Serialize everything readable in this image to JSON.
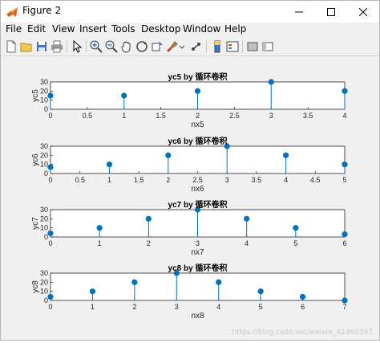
{
  "window": {
    "title": "Figure 2"
  },
  "menu": [
    "File",
    "Edit",
    "View",
    "Insert",
    "Tools",
    "Desktop",
    "Window",
    "Help"
  ],
  "watermark": "https://blog.csdn.net/weixin_42460397",
  "colors": {
    "stem": "#0072bd",
    "axes_bg": "#ffffff",
    "figure_bg": "#f0f0f0"
  },
  "chart_data": [
    {
      "type": "stem",
      "title": "yc5 by 循环卷积",
      "xlabel": "nx5",
      "ylabel": "yc5",
      "x": [
        0,
        1,
        2,
        3,
        4
      ],
      "y": [
        15,
        15,
        20,
        30,
        20
      ],
      "xlim": [
        0,
        4
      ],
      "ylim": [
        0,
        30
      ],
      "xticks": [
        "0",
        "0.5",
        "1",
        "1.5",
        "2",
        "2.5",
        "3",
        "3.5",
        "4"
      ],
      "yticks": [
        "0",
        "10",
        "20",
        "30"
      ]
    },
    {
      "type": "stem",
      "title": "yc6 by 循环卷积",
      "xlabel": "nx6",
      "ylabel": "yc6",
      "x": [
        0,
        1,
        2,
        3,
        4,
        5
      ],
      "y": [
        7,
        10,
        20,
        30,
        20,
        10
      ],
      "xlim": [
        0,
        5
      ],
      "ylim": [
        0,
        30
      ],
      "xticks": [
        "0",
        "0.5",
        "1",
        "1.5",
        "2",
        "2.5",
        "3",
        "3.5",
        "4",
        "4.5",
        "5"
      ],
      "yticks": [
        "0",
        "10",
        "20",
        "30"
      ]
    },
    {
      "type": "stem",
      "title": "yc7 by 循环卷积",
      "xlabel": "nx7",
      "ylabel": "yc7",
      "x": [
        0,
        1,
        2,
        3,
        4,
        5,
        6
      ],
      "y": [
        4,
        10,
        20,
        30,
        20,
        10,
        3
      ],
      "xlim": [
        0,
        6
      ],
      "ylim": [
        0,
        30
      ],
      "xticks": [
        "0",
        "1",
        "2",
        "3",
        "4",
        "5",
        "6"
      ],
      "yticks": [
        "0",
        "10",
        "20",
        "30"
      ]
    },
    {
      "type": "stem",
      "title": "yc8 by 循环卷积",
      "xlabel": "nx8",
      "ylabel": "yc8",
      "x": [
        0,
        1,
        2,
        3,
        4,
        5,
        6,
        7
      ],
      "y": [
        4,
        10,
        20,
        30,
        20,
        10,
        4,
        0
      ],
      "xlim": [
        0,
        7
      ],
      "ylim": [
        0,
        30
      ],
      "xticks": [
        "0",
        "1",
        "2",
        "3",
        "4",
        "5",
        "6",
        "7"
      ],
      "yticks": [
        "0",
        "10",
        "20",
        "30"
      ]
    }
  ]
}
